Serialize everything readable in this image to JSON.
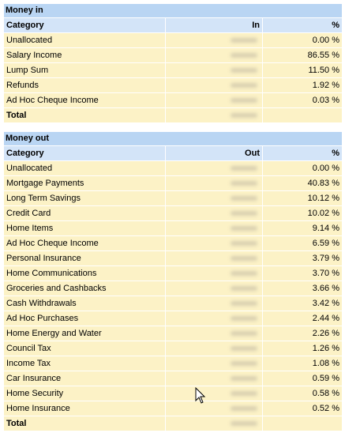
{
  "money_in": {
    "title": "Money in",
    "columns": [
      "Category",
      "In",
      "%"
    ],
    "rows": [
      [
        "Unallocated",
        "0.00 %"
      ],
      [
        "Salary Income",
        "86.55 %"
      ],
      [
        "Lump Sum",
        "11.50 %"
      ],
      [
        "Refunds",
        "1.92 %"
      ],
      [
        "Ad Hoc Cheque Income",
        "0.03 %"
      ]
    ],
    "total": "Total"
  },
  "money_out": {
    "title": "Money out",
    "columns": [
      "Category",
      "Out",
      "%"
    ],
    "rows": [
      [
        "Unallocated",
        "0.00 %"
      ],
      [
        "Mortgage Payments",
        "40.83 %"
      ],
      [
        "Long Term Savings",
        "10.12 %"
      ],
      [
        "Credit Card",
        "10.02 %"
      ],
      [
        "Home Items",
        "9.14 %"
      ],
      [
        "Ad Hoc Cheque Income",
        "6.59 %"
      ],
      [
        "Personal Insurance",
        "3.79 %"
      ],
      [
        "Home Communications",
        "3.70 %"
      ],
      [
        "Groceries and Cashbacks",
        "3.66 %"
      ],
      [
        "Cash Withdrawals",
        "3.42 %"
      ],
      [
        "Ad Hoc Purchases",
        "2.44 %"
      ],
      [
        "Home Energy and Water",
        "2.26 %"
      ],
      [
        "Council Tax",
        "1.26 %"
      ],
      [
        "Income Tax",
        "1.08 %"
      ],
      [
        "Car Insurance",
        "0.59 %"
      ],
      [
        "Home Security",
        "0.58 %"
      ],
      [
        "Home Insurance",
        "0.52 %"
      ]
    ],
    "total": "Total"
  }
}
